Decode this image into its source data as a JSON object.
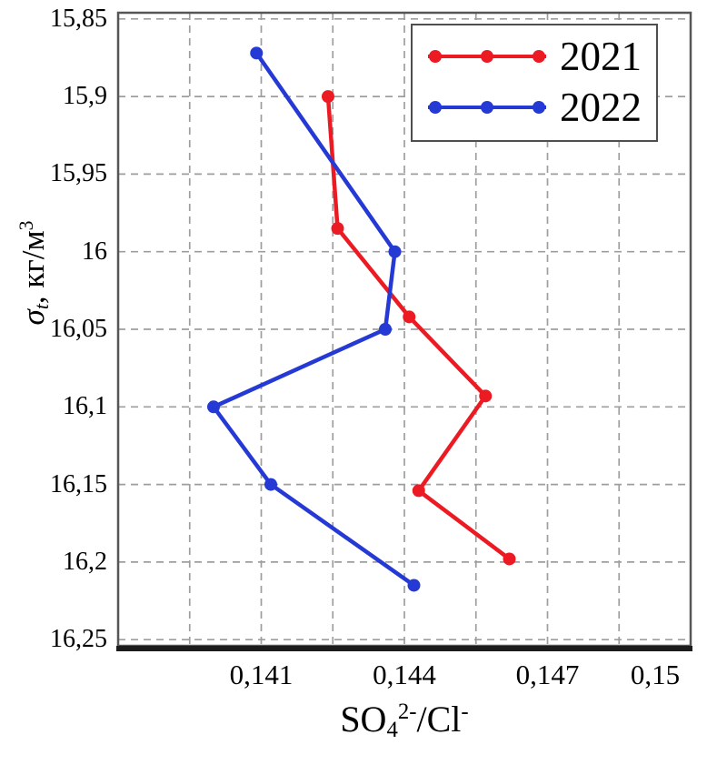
{
  "chart_data": {
    "type": "line",
    "title": "",
    "xlabel": {
      "text": "SO42-/Cl-",
      "p1": "SO",
      "sub1": "4",
      "sup1": "2-",
      "p2": "/Cl",
      "sup2": "-"
    },
    "ylabel": {
      "text": "σt, кг/м3",
      "sigma": "σ",
      "sub": "t",
      "mid": ", кг/м",
      "sup": "3"
    },
    "xlim": [
      0.138,
      0.15
    ],
    "ylim": [
      15.846,
      16.254
    ],
    "y_axis_direction": "increasing-downward",
    "grid": true,
    "legend_position": "top-right",
    "x_ticks": [
      {
        "v": 0.141,
        "label": "0,141"
      },
      {
        "v": 0.144,
        "label": "0,144"
      },
      {
        "v": 0.147,
        "label": "0,147"
      },
      {
        "v": 0.15,
        "label": "0,15"
      }
    ],
    "x_grid": [
      0.1395,
      0.141,
      0.1425,
      0.144,
      0.1455,
      0.147,
      0.1485
    ],
    "y_ticks": [
      {
        "v": 15.85,
        "label": "15,85"
      },
      {
        "v": 15.9,
        "label": "15,9"
      },
      {
        "v": 15.95,
        "label": "15,95"
      },
      {
        "v": 16.0,
        "label": "16"
      },
      {
        "v": 16.05,
        "label": "16,05"
      },
      {
        "v": 16.1,
        "label": "16,1"
      },
      {
        "v": 16.15,
        "label": "16,15"
      },
      {
        "v": 16.2,
        "label": "16,2"
      },
      {
        "v": 16.25,
        "label": "16,25"
      }
    ],
    "series": [
      {
        "name": "2021",
        "color": "#ec1b23",
        "points": [
          [
            0.1424,
            15.9
          ],
          [
            0.1426,
            15.985
          ],
          [
            0.1441,
            16.042
          ],
          [
            0.1457,
            16.093
          ],
          [
            0.1443,
            16.154
          ],
          [
            0.1462,
            16.198
          ]
        ]
      },
      {
        "name": "2022",
        "color": "#2539d4",
        "points": [
          [
            0.1409,
            15.872
          ],
          [
            0.1438,
            16.0
          ],
          [
            0.1436,
            16.05
          ],
          [
            0.14,
            16.1
          ],
          [
            0.1412,
            16.15
          ],
          [
            0.1442,
            16.215
          ]
        ]
      }
    ],
    "colors": {
      "grid": "#9e9e9e",
      "border": "#565656",
      "axis_bottom": "#1c1c1c",
      "text": "#000000",
      "background": "#ffffff"
    }
  }
}
